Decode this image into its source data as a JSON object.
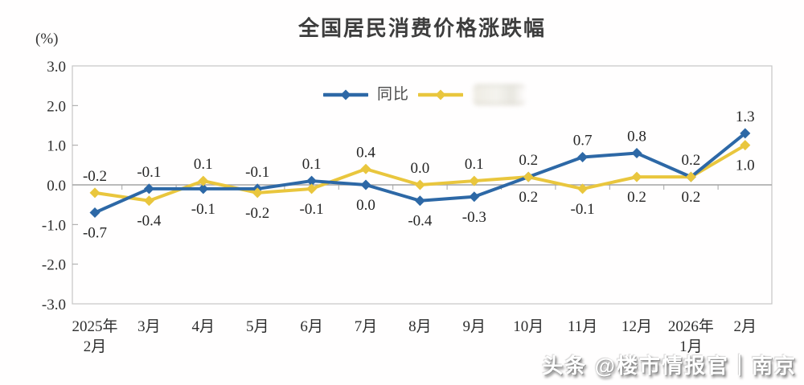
{
  "page": {
    "title": "全国居民消费价格涨跌幅",
    "y_axis_unit": "(%)",
    "watermark": "头条 @楼市情报官｜南京"
  },
  "legend": {
    "yoy_label": "同比",
    "mom_label_redacted": true
  },
  "colors": {
    "yoy_line": "#2d68a6",
    "mom_line": "#e9c63d",
    "frame": "#c6c6c6",
    "zero_line": "#a3a3a3",
    "axis_text": "#2e2e2e"
  },
  "chart_data": {
    "type": "line",
    "title": "全国居民消费价格涨跌幅",
    "ylabel": "(%)",
    "ylim": [
      -3.0,
      3.0
    ],
    "yticks": [
      "3.0",
      "2.0",
      "1.0",
      "0.0",
      "-1.0",
      "-2.0",
      "-3.0"
    ],
    "grid": false,
    "legend_position": "top-center",
    "categories": [
      "2025年\n2月",
      "3月",
      "4月",
      "5月",
      "6月",
      "7月",
      "8月",
      "9月",
      "10月",
      "11月",
      "12月",
      "2026年\n1月",
      "2月"
    ],
    "series": [
      {
        "name": "同比",
        "color": "#2d68a6",
        "values": [
          -0.7,
          -0.1,
          -0.1,
          -0.1,
          0.1,
          0.0,
          -0.4,
          -0.3,
          0.2,
          0.7,
          0.8,
          0.2,
          1.3
        ],
        "label_side": [
          "below",
          "above",
          "below",
          "above",
          "above",
          "below",
          "below",
          "below",
          "below",
          "above",
          "above",
          "above",
          "above"
        ]
      },
      {
        "name": "",
        "name_redacted": true,
        "color": "#e9c63d",
        "values": [
          -0.2,
          -0.4,
          0.1,
          -0.2,
          -0.1,
          0.4,
          0.0,
          0.1,
          0.2,
          -0.1,
          0.2,
          0.2,
          1.0
        ],
        "label_side": [
          "above",
          "below",
          "above",
          "below",
          "below",
          "above",
          "above",
          "above",
          "above",
          "below",
          "below",
          "below",
          "below"
        ]
      }
    ]
  }
}
